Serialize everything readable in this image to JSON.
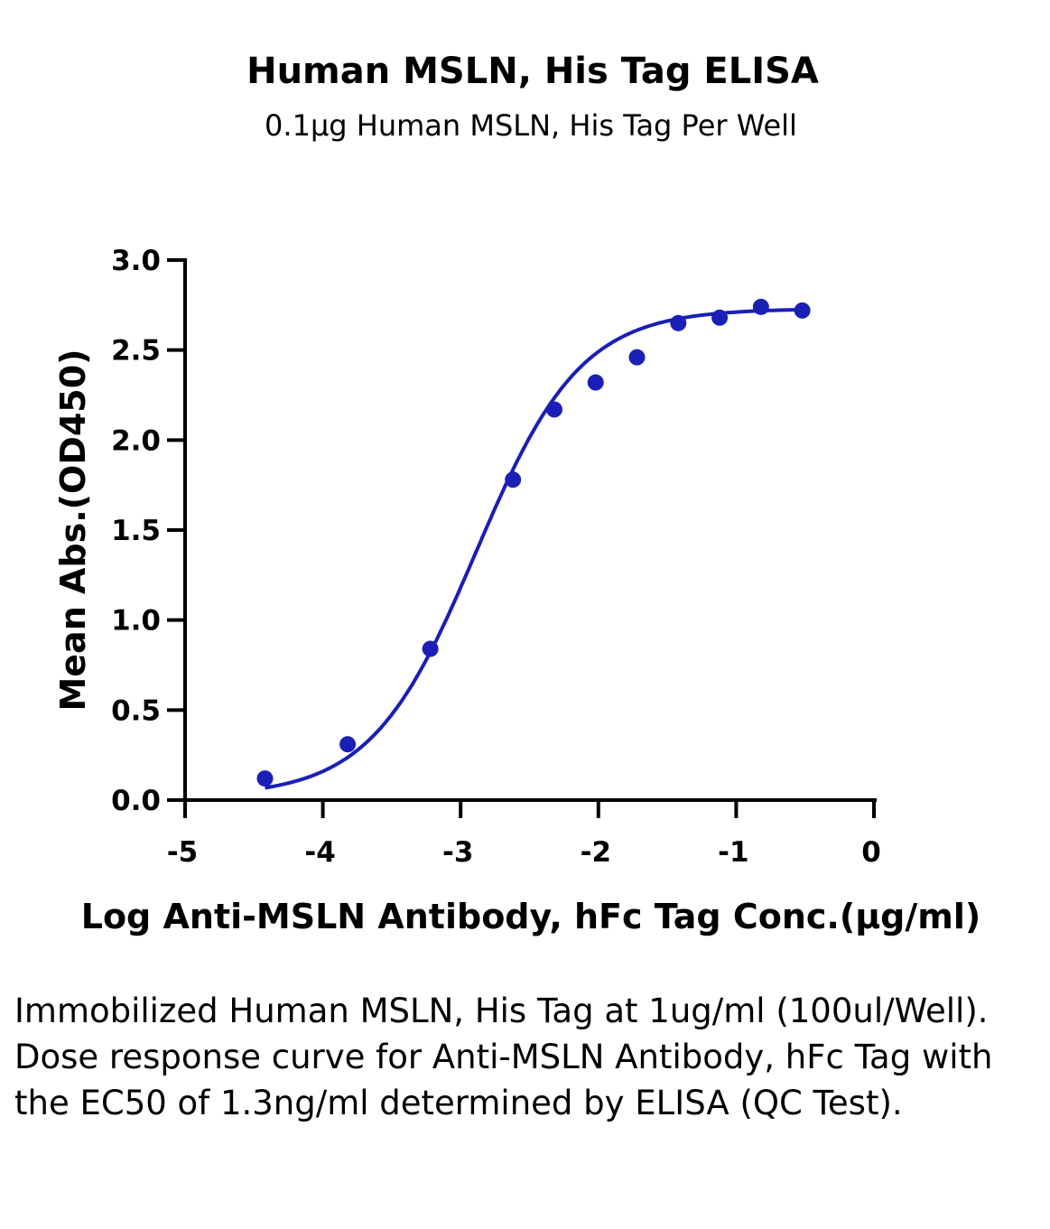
{
  "chart_data": {
    "type": "scatter",
    "title": "Human MSLN, His Tag ELISA",
    "subtitle": "0.1μg Human MSLN, His Tag Per Well",
    "xlabel": "Log Anti-MSLN Antibody, hFc Tag Conc.(μg/ml)",
    "ylabel": "Mean Abs.(OD450)",
    "xlim": [
      -5,
      0
    ],
    "ylim": [
      0,
      3.0
    ],
    "x_ticks": [
      "-5",
      "-4",
      "-3",
      "-2",
      "-1",
      "0"
    ],
    "y_ticks": [
      "0.0",
      "0.5",
      "1.0",
      "1.5",
      "2.0",
      "2.5",
      "3.0"
    ],
    "series": [
      {
        "x": [
          -4.42,
          -3.82,
          -3.22,
          -2.62,
          -2.32,
          -2.02,
          -1.72,
          -1.42,
          -1.12,
          -0.82,
          -0.52
        ],
        "y": [
          0.12,
          0.31,
          0.84,
          1.78,
          2.17,
          2.32,
          2.46,
          2.65,
          2.68,
          2.74,
          2.72
        ],
        "fit": "4PL sigmoid curve",
        "color": "#1a1fb6"
      }
    ],
    "grid": false,
    "legend": "none"
  },
  "caption": "Immobilized Human MSLN, His Tag at 1ug/ml (100ul/Well). Dose response curve for Anti-MSLN Antibody, hFc Tag with the EC50 of 1.3ng/ml determined by ELISA (QC Test)."
}
